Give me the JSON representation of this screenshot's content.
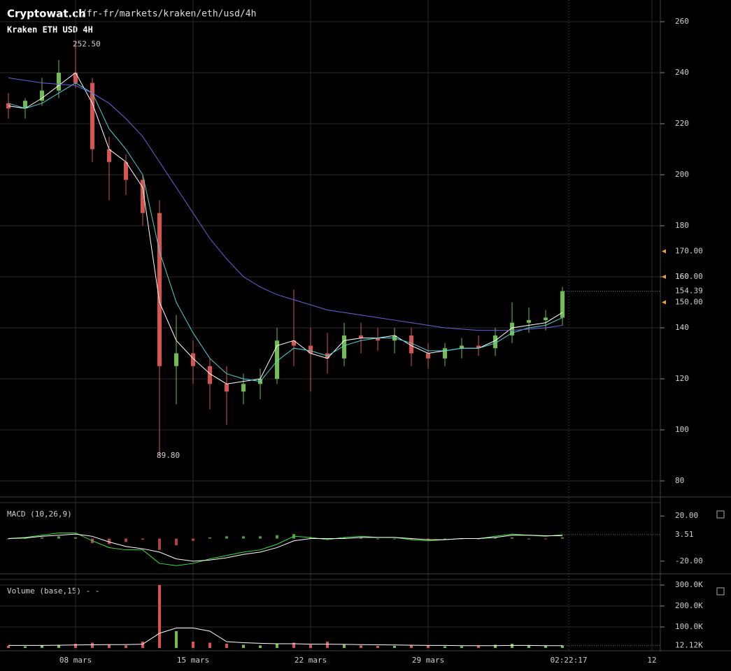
{
  "header": {
    "site": "Cryptowat.ch",
    "path": "/fr-fr/markets/kraken/eth/usd/4h"
  },
  "chart_data": [
    {
      "type": "candlestick",
      "title": "Kraken ETH USD 4H",
      "x": [
        -4,
        -3,
        -2,
        -1,
        0,
        1,
        2,
        3,
        4,
        5,
        6,
        7,
        8,
        9,
        10,
        11,
        12,
        13,
        14,
        15,
        16,
        17,
        18,
        19,
        20,
        21,
        22,
        23,
        24,
        25,
        26,
        27,
        28,
        29
      ],
      "open": [
        228,
        226,
        229,
        233,
        240,
        236,
        210,
        205,
        198,
        185,
        125,
        130,
        125,
        118,
        115,
        118,
        120,
        135,
        133,
        130,
        128,
        137,
        136,
        135,
        137,
        130,
        128,
        132,
        133,
        132,
        137,
        142,
        143,
        144
      ],
      "high": [
        232,
        230,
        238,
        245,
        252.5,
        238,
        215,
        208,
        200,
        190,
        145,
        135,
        128,
        125,
        122,
        124,
        140,
        155,
        140,
        138,
        142,
        142,
        140,
        140,
        140,
        134,
        134,
        136,
        137,
        140,
        150,
        148,
        147,
        156
      ],
      "low": [
        222,
        222,
        227,
        230,
        234,
        205,
        190,
        192,
        180,
        89.8,
        110,
        118,
        108,
        102,
        110,
        112,
        118,
        125,
        115,
        122,
        125,
        130,
        131,
        130,
        125,
        124,
        125,
        128,
        129,
        129,
        134,
        138,
        139,
        141
      ],
      "close": [
        226,
        229,
        233,
        240,
        236,
        210,
        205,
        198,
        185,
        125,
        130,
        125,
        118,
        115,
        118,
        120,
        135,
        133,
        130,
        128,
        137,
        136,
        135,
        137,
        130,
        128,
        132,
        133,
        132,
        137,
        142,
        143,
        144,
        154.39
      ],
      "up_color": "#6fbf4a",
      "down_color": "#d9534f",
      "lines": [
        {
          "color": "#ffffff",
          "values": [
            227,
            226,
            230,
            235,
            240,
            228,
            210,
            205,
            195,
            150,
            135,
            128,
            122,
            118,
            119,
            120,
            133,
            135,
            130,
            128,
            135,
            136,
            136,
            137,
            133,
            130,
            131,
            132,
            132,
            135,
            140,
            141,
            142,
            146
          ]
        },
        {
          "color": "#4fd1d9",
          "values": [
            228,
            226,
            228,
            232,
            236,
            232,
            218,
            210,
            200,
            170,
            150,
            138,
            128,
            122,
            120,
            119,
            127,
            132,
            131,
            129,
            133,
            135,
            136,
            136,
            134,
            131,
            131,
            132,
            132,
            134,
            138,
            140,
            141,
            144
          ]
        },
        {
          "color": "#6b63d6",
          "values": [
            238,
            237,
            236,
            235.5,
            235,
            232,
            228,
            222,
            215,
            205,
            195,
            185,
            175,
            167,
            160,
            156,
            153,
            151,
            149,
            147,
            146,
            145,
            144,
            143,
            142,
            141,
            140,
            139.5,
            139,
            139,
            139,
            139.5,
            140,
            141
          ]
        }
      ],
      "xlim": [
        -4.5,
        34.83
      ],
      "ylim": [
        73.7,
        268.5
      ],
      "yticks": [
        80,
        100,
        120,
        140,
        160,
        180,
        200,
        220,
        240,
        260
      ],
      "grid": true,
      "price_markers": [
        {
          "value": 170,
          "label": "170.00"
        },
        {
          "value": 160,
          "label": "160.00"
        },
        {
          "value": 150,
          "label": "150.00"
        }
      ],
      "last_price": {
        "value": 154.39,
        "label": "154.39"
      },
      "annotations": [
        {
          "x": 0,
          "value": 252.5,
          "label": "252.50"
        },
        {
          "x": 5,
          "value": 89.8,
          "label": "89.80"
        }
      ]
    },
    {
      "type": "macd",
      "title": "MACD (10,26,9)",
      "series": [
        {
          "color": "#3ddc3d",
          "values": [
            0,
            1,
            3,
            5,
            5,
            -2,
            -8,
            -10,
            -10,
            -22,
            -24,
            -22,
            -18,
            -15,
            -12,
            -10,
            -5,
            2,
            1,
            -1,
            1,
            2,
            1,
            1,
            -1,
            -2,
            -1,
            0,
            0,
            2,
            4,
            3,
            2,
            3.51
          ]
        },
        {
          "color": "#ffffff",
          "values": [
            0,
            0.5,
            2,
            3,
            4,
            2,
            -3,
            -7,
            -9,
            -12,
            -18,
            -20,
            -19,
            -17,
            -14,
            -12,
            -8,
            -2,
            0,
            0,
            0,
            1,
            1,
            1,
            0,
            -1,
            -1,
            0,
            0,
            1,
            3,
            3,
            2.5,
            2.5
          ]
        }
      ],
      "histogram": {
        "values": [
          0,
          0.5,
          1,
          2,
          1,
          -4,
          -5,
          -3,
          -1,
          -10,
          -6,
          -2,
          1,
          2,
          2,
          2,
          3,
          4,
          1,
          -1,
          1,
          1,
          0,
          0,
          -1,
          -1,
          0,
          0,
          0,
          1,
          1,
          0,
          -0.5,
          1
        ],
        "up_color": "#6fbf4a",
        "down_color": "#d9534f"
      },
      "ylim": [
        -31.25,
        36.25
      ],
      "yticks": [
        {
          "value": 20,
          "label": "20.00"
        },
        {
          "value": -20,
          "label": "-20.00"
        }
      ],
      "last": {
        "value": 3.51,
        "label": "3.51"
      }
    },
    {
      "type": "volume",
      "title": "Volume (base,15) - -",
      "values": [
        10000,
        8000,
        12000,
        15000,
        20000,
        25000,
        15000,
        12000,
        30000,
        300000,
        80000,
        30000,
        25000,
        20000,
        15000,
        12000,
        20000,
        25000,
        15000,
        30000,
        15000,
        12000,
        10000,
        10000,
        12000,
        10000,
        8000,
        8000,
        10000,
        15000,
        20000,
        12000,
        10000,
        12120
      ],
      "ma": {
        "color": "#ffffff",
        "values": [
          12000,
          12000,
          12000,
          13000,
          14000,
          15000,
          16000,
          16000,
          18000,
          70000,
          95000,
          95000,
          80000,
          30000,
          25000,
          22000,
          20000,
          20000,
          18000,
          18000,
          17000,
          16000,
          15000,
          14000,
          13000,
          12000,
          12000,
          11000,
          11000,
          11000,
          12000,
          12000,
          11000,
          11000
        ]
      },
      "ylim": [
        -13300,
        326700
      ],
      "yticks": [
        {
          "value": 300000,
          "label": "300.0K"
        },
        {
          "value": 200000,
          "label": "200.0K"
        },
        {
          "value": 100000,
          "label": "100.0K"
        }
      ],
      "last": {
        "value": 12120,
        "label": "12.12K"
      },
      "xticks": [
        {
          "value": 0,
          "label": "08 mars"
        },
        {
          "value": 7,
          "label": "15 mars"
        },
        {
          "value": 14,
          "label": "22 mars"
        },
        {
          "value": 21,
          "label": "29 mars"
        },
        {
          "value": 29.375,
          "label": "02:22:17"
        },
        {
          "value": 34.33,
          "label": "12"
        }
      ]
    }
  ]
}
